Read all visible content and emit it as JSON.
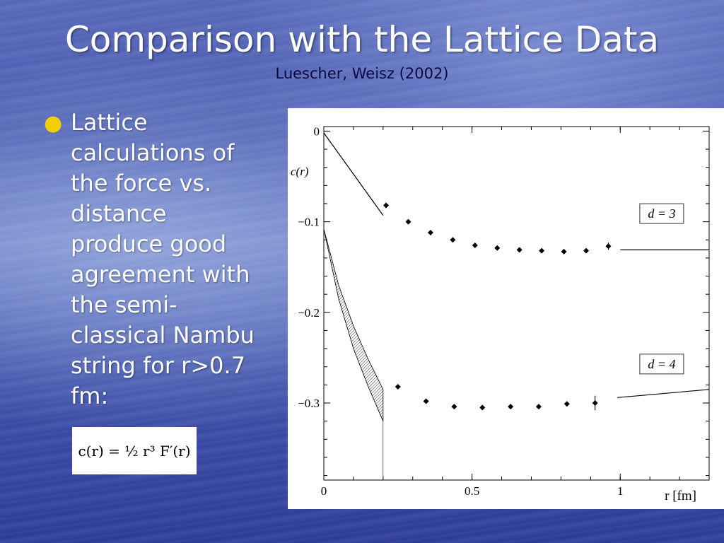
{
  "slide": {
    "title": "Comparison with the Lattice Data",
    "subtitle": "Luescher, Weisz (2002)",
    "bullet": "Lattice calculations of the force vs. distance produce good agreement with the semi-classical Nambu string for r>0.7 fm:",
    "formula": "c(r) = ½ r³ F′(r)",
    "colors": {
      "title": "#ffffff",
      "subtitle": "#0a0a40",
      "bullet_dot": "#f3d000",
      "chart_bg": "#ffffff"
    }
  },
  "chart_data": {
    "type": "scatter",
    "xlabel": "r [fm]",
    "ylabel": "c(r)",
    "xlim": [
      0,
      1.3
    ],
    "ylim": [
      -0.385,
      0.005
    ],
    "x_ticks": [
      0,
      0.5,
      1
    ],
    "x_tick_labels": [
      "0",
      "0.5",
      "1"
    ],
    "y_ticks": [
      0,
      -0.1,
      -0.2,
      -0.3
    ],
    "y_tick_labels": [
      "0",
      "−0.1",
      "−0.2",
      "−0.3"
    ],
    "grid": false,
    "annotations": [
      "d = 3",
      "d = 4"
    ],
    "series": [
      {
        "name": "d = 3",
        "points": [
          {
            "x": 0.21,
            "y": -0.082
          },
          {
            "x": 0.285,
            "y": -0.1
          },
          {
            "x": 0.36,
            "y": -0.112
          },
          {
            "x": 0.435,
            "y": -0.12
          },
          {
            "x": 0.51,
            "y": -0.126
          },
          {
            "x": 0.585,
            "y": -0.129
          },
          {
            "x": 0.66,
            "y": -0.131
          },
          {
            "x": 0.735,
            "y": -0.132
          },
          {
            "x": 0.81,
            "y": -0.133
          },
          {
            "x": 0.885,
            "y": -0.132
          },
          {
            "x": 0.96,
            "y": -0.127,
            "err": 0.004
          }
        ],
        "curve_short": [
          [
            0,
            -0.002
          ],
          [
            0.2,
            -0.093
          ]
        ],
        "curve_long": [
          [
            1.0,
            -0.131
          ],
          [
            1.3,
            -0.131
          ]
        ]
      },
      {
        "name": "d = 4",
        "points": [
          {
            "x": 0.25,
            "y": -0.282
          },
          {
            "x": 0.345,
            "y": -0.298
          },
          {
            "x": 0.44,
            "y": -0.304
          },
          {
            "x": 0.535,
            "y": -0.305
          },
          {
            "x": 0.63,
            "y": -0.304
          },
          {
            "x": 0.725,
            "y": -0.304
          },
          {
            "x": 0.82,
            "y": -0.301
          },
          {
            "x": 0.915,
            "y": -0.3,
            "err": 0.008
          }
        ],
        "band_upper": [
          [
            0,
            -0.108
          ],
          [
            0.05,
            -0.17
          ],
          [
            0.1,
            -0.215
          ],
          [
            0.15,
            -0.252
          ],
          [
            0.2,
            -0.285
          ]
        ],
        "band_lower": [
          [
            0,
            -0.108
          ],
          [
            0.05,
            -0.185
          ],
          [
            0.1,
            -0.24
          ],
          [
            0.15,
            -0.282
          ],
          [
            0.2,
            -0.32
          ]
        ],
        "curve_long": [
          [
            0.99,
            -0.294
          ],
          [
            1.3,
            -0.285
          ]
        ]
      }
    ]
  }
}
